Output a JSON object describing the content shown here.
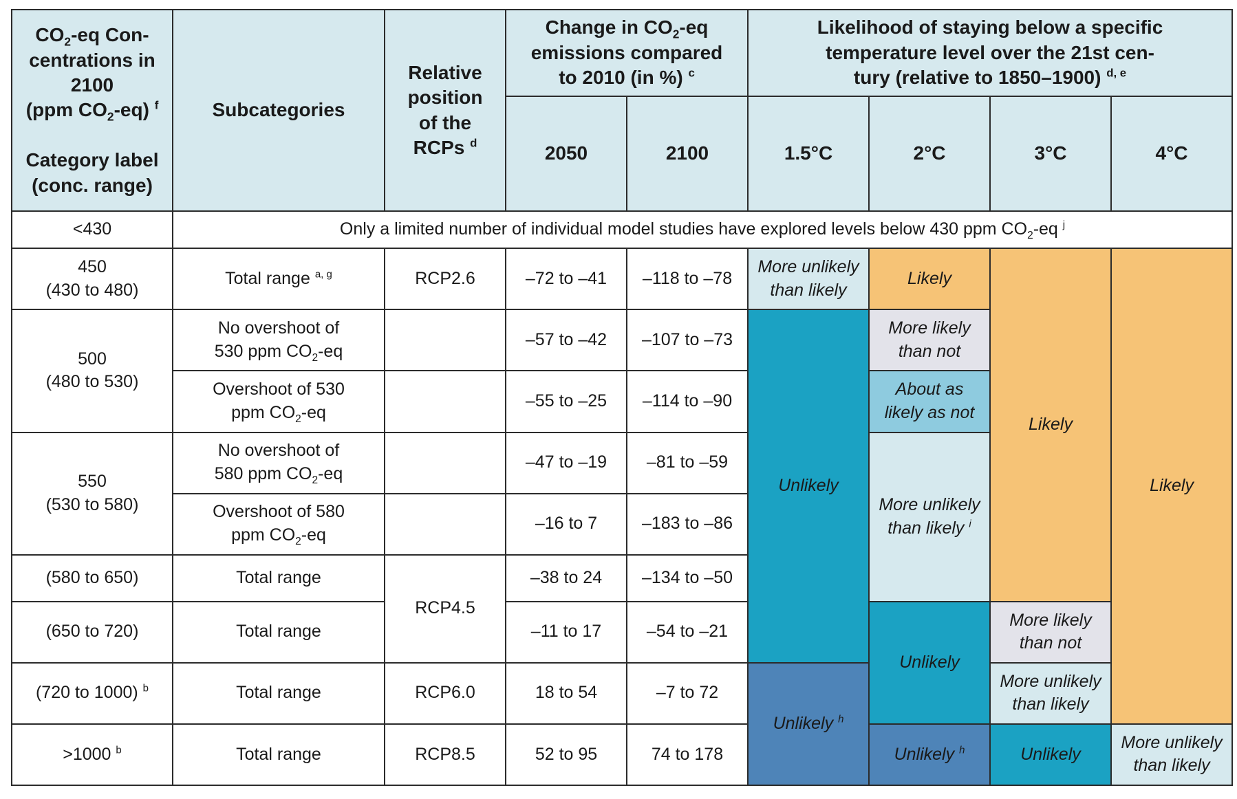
{
  "header": {
    "col1": {
      "l1": "CO",
      "s1": "2",
      "l2": "-eq Con-",
      "l3": "centrations in",
      "l4": "2100",
      "l5": "(ppm CO",
      "s2": "2",
      "l6": "-eq)",
      "f": "f",
      "l7": "Category label",
      "l8": "(conc. range)"
    },
    "col2": "Subcategories",
    "col3": {
      "l1": "Relative",
      "l2": "position",
      "l3": "of the",
      "l4": "RCPs",
      "f": "d"
    },
    "col4": {
      "l1": "Change in CO",
      "s1": "2",
      "l2": "-eq",
      "l3": "emissions compared",
      "l4": "to 2010 (in %)",
      "f": "c"
    },
    "col5": {
      "l1": "Likelihood of staying below a specific",
      "l2": "temperature level over the 21st cen-",
      "l3": "tury (relative to 1850–1900)",
      "f": "d, e"
    },
    "years": [
      "2050",
      "2100"
    ],
    "temps": [
      "1.5°C",
      "2°C",
      "3°C",
      "4°C"
    ]
  },
  "rows": {
    "r430": {
      "cat": "<430",
      "note_a": "Only a limited number of individual model studies have explored levels below 430 ppm CO",
      "note_s": "2",
      "note_b": "-eq",
      "note_f": "j"
    },
    "r450": {
      "cat1": "450",
      "cat2": "(430 to 480)",
      "sub": "Total range",
      "sub_f": "a, g",
      "rcp": "RCP2.6",
      "e2050": "–72 to –41",
      "e2100": "–118 to –78"
    },
    "r500": {
      "cat1": "500",
      "cat2": "(480 to 530)",
      "a": {
        "sub1": "No overshoot of",
        "sub2": "530 ppm CO",
        "sub_s": "2",
        "sub3": "-eq",
        "e2050": "–57 to –42",
        "e2100": "–107 to –73"
      },
      "b": {
        "sub1": "Overshoot of 530",
        "sub2": "ppm CO",
        "sub_s": "2",
        "sub3": "-eq",
        "e2050": "–55 to –25",
        "e2100": "–114 to –90"
      }
    },
    "r550": {
      "cat1": "550",
      "cat2": "(530 to 580)",
      "a": {
        "sub1": "No overshoot of",
        "sub2": "580 ppm CO",
        "sub_s": "2",
        "sub3": "-eq",
        "e2050": "–47 to –19",
        "e2100": "–81 to –59"
      },
      "b": {
        "sub1": "Overshoot of 580",
        "sub2": "ppm CO",
        "sub_s": "2",
        "sub3": "-eq",
        "e2050": "–16 to 7",
        "e2100": "–183 to –86"
      }
    },
    "r580": {
      "cat": "(580 to 650)",
      "sub": "Total range",
      "rcp": "RCP4.5",
      "e2050": "–38 to 24",
      "e2100": "–134 to –50"
    },
    "r650": {
      "cat": "(650 to 720)",
      "sub": "Total range",
      "e2050": "–11 to 17",
      "e2100": "–54 to –21"
    },
    "r720": {
      "cat": "(720 to 1000)",
      "cat_f": "b",
      "sub": "Total range",
      "rcp": "RCP6.0",
      "e2050": "18 to 54",
      "e2100": "–7 to 72"
    },
    "r1000": {
      "cat": ">1000",
      "cat_f": "b",
      "sub": "Total range",
      "rcp": "RCP8.5",
      "e2050": "52 to 95",
      "e2100": "74 to 178"
    }
  },
  "likelihood": {
    "t15_450": {
      "l1": "More unlikely",
      "l2": "than likely"
    },
    "t15_mid": "Unlikely",
    "t15_low": {
      "l": "Unlikely",
      "f": "h"
    },
    "t2_450": "Likely",
    "t2_500a": {
      "l1": "More likely",
      "l2": "than not"
    },
    "t2_500b": {
      "l1": "About as",
      "l2": "likely as not"
    },
    "t2_550": {
      "l1": "More unlikely",
      "l2": "than likely",
      "f": "i"
    },
    "t2_650": "Unlikely",
    "t2_1000": {
      "l": "Unlikely",
      "f": "h"
    },
    "t3_top": "Likely",
    "t3_650": {
      "l1": "More likely",
      "l2": "than not"
    },
    "t3_720": {
      "l1": "More unlikely",
      "l2": "than likely"
    },
    "t3_1000": "Unlikely",
    "t4_top": "Likely",
    "t4_1000": {
      "l1": "More unlikely",
      "l2": "than likely"
    }
  },
  "colors": {
    "header_bg": "#d6e9ee",
    "likely_orange": "#f6c376",
    "more_likely_grey": "#e3e3ea",
    "about_as_likely_sky": "#8ecbdf",
    "unlikely_teal": "#1ba2c3",
    "unlikely_h_steel": "#4e84b8",
    "more_unlikely_pale": "#d6e9ee"
  }
}
